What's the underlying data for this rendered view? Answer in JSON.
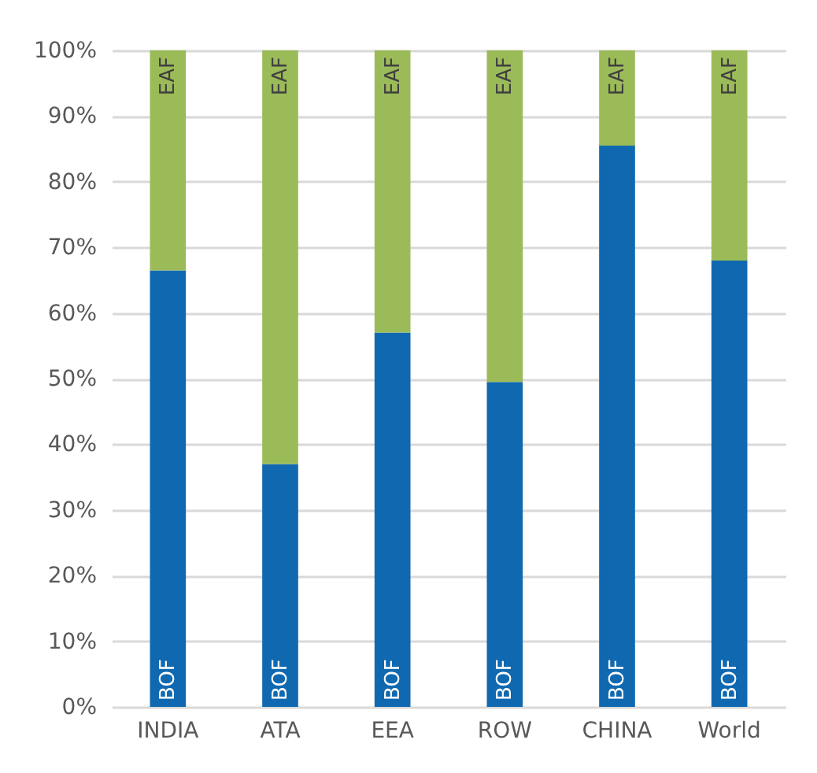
{
  "chart_data": {
    "type": "bar",
    "stacked": true,
    "categories": [
      "INDIA",
      "ATA",
      "EEA",
      "ROW",
      "CHINA",
      "World"
    ],
    "series": [
      {
        "name": "BOF",
        "color": "#1069b0",
        "values": [
          66.5,
          37,
          57,
          49.5,
          85.5,
          68
        ]
      },
      {
        "name": "EAF",
        "color": "#9bbb59",
        "values": [
          33.5,
          63,
          43,
          50.5,
          14.5,
          32
        ]
      }
    ],
    "ylim": [
      0,
      100
    ],
    "yticks": [
      {
        "value": 0,
        "label": "0%"
      },
      {
        "value": 10,
        "label": "10%"
      },
      {
        "value": 20,
        "label": "20%"
      },
      {
        "value": 30,
        "label": "30%"
      },
      {
        "value": 40,
        "label": "40%"
      },
      {
        "value": 50,
        "label": "50%"
      },
      {
        "value": 60,
        "label": "60%"
      },
      {
        "value": 70,
        "label": "70%"
      },
      {
        "value": 80,
        "label": "80%"
      },
      {
        "value": 90,
        "label": "90%"
      },
      {
        "value": 100,
        "label": "100%"
      }
    ],
    "grid": "y"
  }
}
